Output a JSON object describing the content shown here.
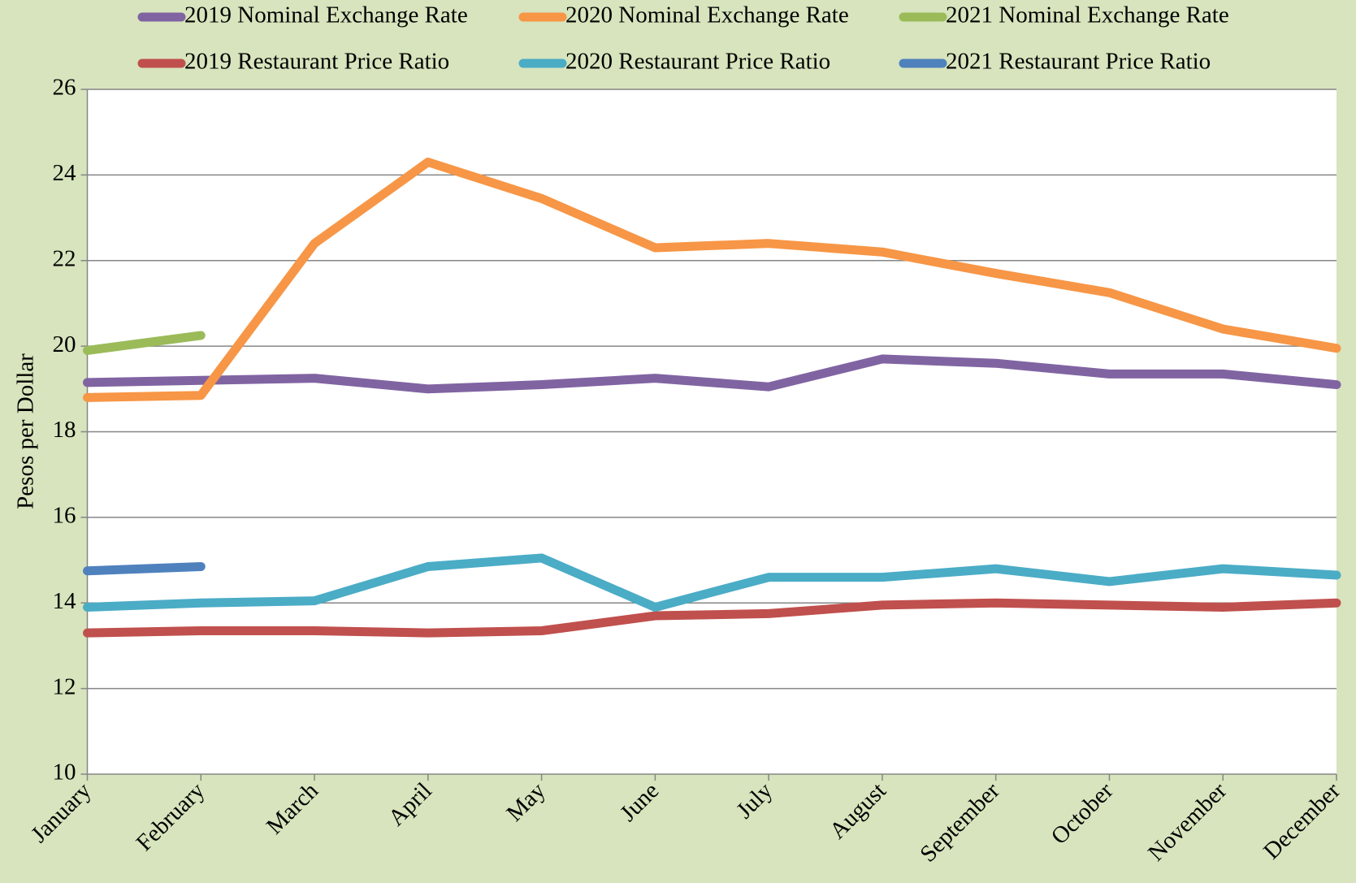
{
  "chart_data": {
    "type": "line",
    "ylabel": "Pesos per Dollar",
    "categories": [
      "January",
      "February",
      "March",
      "April",
      "May",
      "June",
      "July",
      "August",
      "September",
      "October",
      "November",
      "December"
    ],
    "series": [
      {
        "name": "2019 Nominal Exchange Rate",
        "color": "#8064a2",
        "values": [
          19.15,
          19.2,
          19.25,
          19.0,
          19.1,
          19.25,
          19.05,
          19.7,
          19.6,
          19.35,
          19.35,
          19.1
        ]
      },
      {
        "name": "2020 Nominal Exchange Rate",
        "color": "#f79646",
        "values": [
          18.8,
          18.85,
          22.4,
          24.3,
          23.45,
          22.3,
          22.4,
          22.2,
          21.7,
          21.25,
          20.4,
          19.95
        ]
      },
      {
        "name": "2021 Nominal Exchange Rate",
        "color": "#9bbb59",
        "values": [
          19.9,
          20.25,
          null,
          null,
          null,
          null,
          null,
          null,
          null,
          null,
          null,
          null
        ]
      },
      {
        "name": "2019 Restaurant Price Ratio",
        "color": "#c0504d",
        "values": [
          13.3,
          13.35,
          13.35,
          13.3,
          13.35,
          13.7,
          13.75,
          13.95,
          14.0,
          13.95,
          13.9,
          14.0
        ]
      },
      {
        "name": "2020 Restaurant Price Ratio",
        "color": "#4bacc6",
        "values": [
          13.9,
          14.0,
          14.05,
          14.85,
          15.05,
          13.9,
          14.6,
          14.6,
          14.8,
          14.5,
          14.8,
          14.65
        ]
      },
      {
        "name": "2021 Restaurant Price Ratio",
        "color": "#4f81bd",
        "values": [
          14.75,
          14.85,
          null,
          null,
          null,
          null,
          null,
          null,
          null,
          null,
          null,
          null
        ]
      }
    ],
    "ylim": [
      10,
      26
    ],
    "yticks": [
      10,
      12,
      14,
      16,
      18,
      20,
      22,
      24,
      26
    ],
    "grid": true,
    "legend": "top"
  }
}
